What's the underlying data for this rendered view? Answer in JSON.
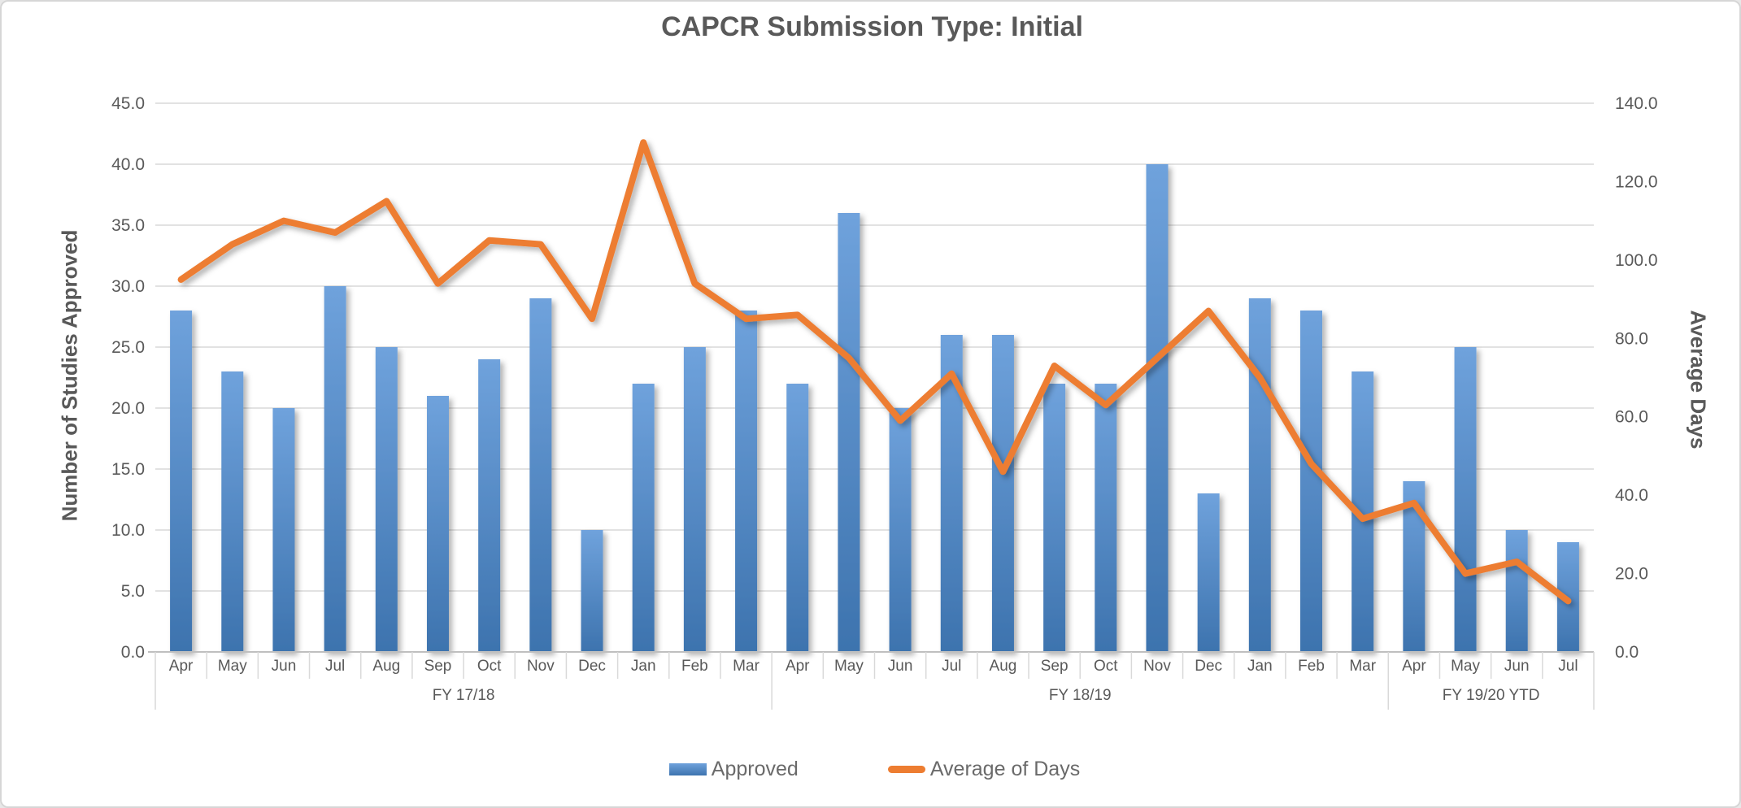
{
  "title": "CAPCR Submission Type: Initial",
  "legend": {
    "approved_label": "Approved",
    "avg_label": "Average of Days"
  },
  "colors": {
    "bar_top": "#6fa2dc",
    "bar_bottom": "#3d73ae",
    "line": "#ed7d31",
    "gridline": "#d9d9d9",
    "axis_line": "#bfbfbf",
    "text": "#595959"
  },
  "chart_data": {
    "type": "bar",
    "subtype": "bar+line combo, dual axis",
    "title": "CAPCR Submission Type: Initial",
    "categories": [
      "Apr",
      "May",
      "Jun",
      "Jul",
      "Aug",
      "Sep",
      "Oct",
      "Nov",
      "Dec",
      "Jan",
      "Feb",
      "Mar",
      "Apr",
      "May",
      "Jun",
      "Jul",
      "Aug",
      "Sep",
      "Oct",
      "Nov",
      "Dec",
      "Jan",
      "Feb",
      "Mar",
      "Apr",
      "May",
      "Jun",
      "Jul"
    ],
    "groups": [
      {
        "label": "FY 17/18",
        "span": 12
      },
      {
        "label": "FY 18/19",
        "span": 12
      },
      {
        "label": "FY 19/20 YTD",
        "span": 4
      }
    ],
    "series": [
      {
        "name": "Approved",
        "type": "bar",
        "axis": "left",
        "values": [
          28,
          23,
          20,
          30,
          25,
          21,
          24,
          29,
          10,
          22,
          25,
          28,
          22,
          36,
          20,
          26,
          26,
          22,
          22,
          40,
          13,
          29,
          28,
          23,
          14,
          25,
          10,
          9
        ]
      },
      {
        "name": "Average of Days",
        "type": "line",
        "axis": "right",
        "values": [
          95,
          104,
          110,
          107,
          115,
          94,
          105,
          104,
          85,
          130,
          94,
          85,
          86,
          75,
          59,
          71,
          46,
          73,
          63,
          75,
          87,
          70,
          48,
          34,
          38,
          20,
          23,
          13
        ]
      }
    ],
    "left_axis": {
      "title": "Number of Studies Approved",
      "min": 0,
      "max": 45,
      "step": 5,
      "ticks": [
        "0.0",
        "5.0",
        "10.0",
        "15.0",
        "20.0",
        "25.0",
        "30.0",
        "35.0",
        "40.0",
        "45.0"
      ]
    },
    "right_axis": {
      "title": "Average Days",
      "min": 0,
      "max": 140,
      "step": 20,
      "ticks": [
        "0.0",
        "20.0",
        "40.0",
        "60.0",
        "80.0",
        "100.0",
        "120.0",
        "140.0"
      ]
    },
    "grid": true,
    "legend_position": "bottom"
  }
}
